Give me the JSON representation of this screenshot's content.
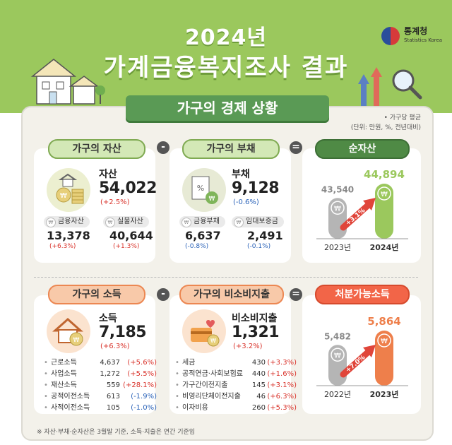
{
  "header": {
    "year": "2024년",
    "title": "가계금융복지조사 결과",
    "org_name": "통계청",
    "org_name_en": "Statistics Korea"
  },
  "section": {
    "title": "가구의 경제 상황",
    "meta_line1": "• 가구당 평균",
    "meta_line2": "(단위: 만원, %, 전년대비)"
  },
  "assets": {
    "pill": "가구의 자산",
    "label": "자산",
    "value": "54,022",
    "change": "(+2.5%)",
    "sub": [
      {
        "label": "금융자산",
        "value": "13,378",
        "change": "(+6.3%)"
      },
      {
        "label": "실물자산",
        "value": "40,644",
        "change": "(+1.3%)"
      }
    ]
  },
  "debt": {
    "pill": "가구의 부채",
    "label": "부채",
    "value": "9,128",
    "change": "(-0.6%)",
    "sub": [
      {
        "label": "금융부채",
        "value": "6,637",
        "change": "(-0.8%)"
      },
      {
        "label": "임대보증금",
        "value": "2,491",
        "change": "(-0.1%)"
      }
    ]
  },
  "net_assets": {
    "pill": "순자산",
    "growth": "+3.1%",
    "chart_data": {
      "type": "bar",
      "categories": [
        "2023년",
        "2024년"
      ],
      "values": [
        43540,
        44894
      ],
      "value_labels": [
        "43,540",
        "44,894"
      ],
      "colors": [
        "#b5b5b5",
        "#9bc85d"
      ]
    }
  },
  "income": {
    "pill": "가구의 소득",
    "label": "소득",
    "value": "7,185",
    "change": "(+6.3%)",
    "items": [
      {
        "name": "근로소득",
        "value": "4,637",
        "change": "(+5.6%)",
        "tone": "red"
      },
      {
        "name": "사업소득",
        "value": "1,272",
        "change": "(+5.5%)",
        "tone": "red"
      },
      {
        "name": "재산소득",
        "value": "559",
        "change": "(+28.1%)",
        "tone": "red"
      },
      {
        "name": "공적이전소득",
        "value": "613",
        "change": "(-1.9%)",
        "tone": "blue"
      },
      {
        "name": "사적이전소득",
        "value": "105",
        "change": "(-1.0%)",
        "tone": "blue"
      }
    ]
  },
  "nonconsumption": {
    "pill": "가구의 비소비지출",
    "label": "비소비지출",
    "value": "1,321",
    "change": "(+3.2%)",
    "items": [
      {
        "name": "세금",
        "value": "430",
        "change": "(+3.3%)",
        "tone": "red"
      },
      {
        "name": "공적연금·사회보험료",
        "value": "440",
        "change": "(+1.6%)",
        "tone": "red"
      },
      {
        "name": "가구간이전지출",
        "value": "145",
        "change": "(+3.1%)",
        "tone": "red"
      },
      {
        "name": "비영리단체이전지출",
        "value": "46",
        "change": "(+6.3%)",
        "tone": "red"
      },
      {
        "name": "이자비용",
        "value": "260",
        "change": "(+5.3%)",
        "tone": "red"
      }
    ]
  },
  "disposable": {
    "pill": "처분가능소득",
    "growth": "+7.0%",
    "chart_data": {
      "type": "bar",
      "categories": [
        "2022년",
        "2023년"
      ],
      "values": [
        5482,
        5864
      ],
      "value_labels": [
        "5,482",
        "5,864"
      ],
      "colors": [
        "#b5b5b5",
        "#ee7f4b"
      ]
    }
  },
  "operators": {
    "minus": "-",
    "equals": "="
  },
  "footnote": "※ 자산·부채·순자산은 3월말 기준, 소득·지출은 연간 기준임",
  "colors": {
    "band": "#9bc85d",
    "panel": "#f3f1ea",
    "title_green": "#5a9a55",
    "increase": "#d9332b",
    "decrease": "#2a62b8"
  }
}
